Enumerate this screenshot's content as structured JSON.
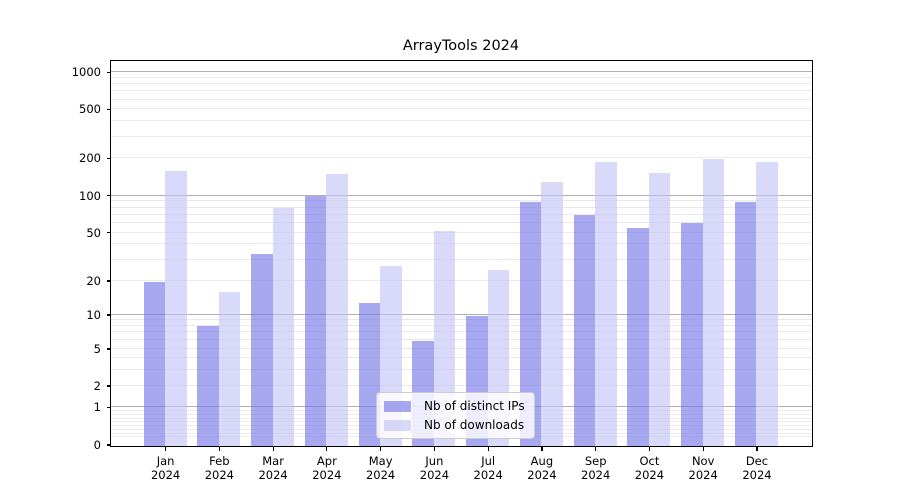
{
  "chart_data": {
    "type": "bar",
    "title": "ArrayTools 2024",
    "categories": [
      "Jan",
      "Feb",
      "Mar",
      "Apr",
      "May",
      "Jun",
      "Jul",
      "Aug",
      "Sep",
      "Oct",
      "Nov",
      "Dec"
    ],
    "category_year": "2024",
    "series": [
      {
        "name": "Nb of distinct IPs",
        "values": [
          20,
          8,
          34,
          100,
          13,
          6,
          10,
          90,
          70,
          55,
          60,
          90
        ],
        "color": "rgba(115,115,231,0.62)"
      },
      {
        "name": "Nb of downloads",
        "values": [
          160,
          16,
          80,
          150,
          27,
          52,
          25,
          130,
          190,
          155,
          200,
          190
        ],
        "color": "rgba(194,194,245,0.62)"
      }
    ],
    "xlabel": "",
    "ylabel": "",
    "yscale": "symlog",
    "ylim": [
      0,
      1240
    ],
    "y_ticks": [
      0,
      1,
      2,
      5,
      10,
      20,
      50,
      100,
      200,
      500,
      1000
    ],
    "grid": "major+minor",
    "legend_position": "lower center"
  },
  "colors": {
    "background": "#ffffff",
    "major_grid": "#b0b0b0",
    "minor_grid": "#e9e9e9",
    "sub1_grid": "#ededed",
    "axis": "#000000",
    "text": "#000000"
  }
}
